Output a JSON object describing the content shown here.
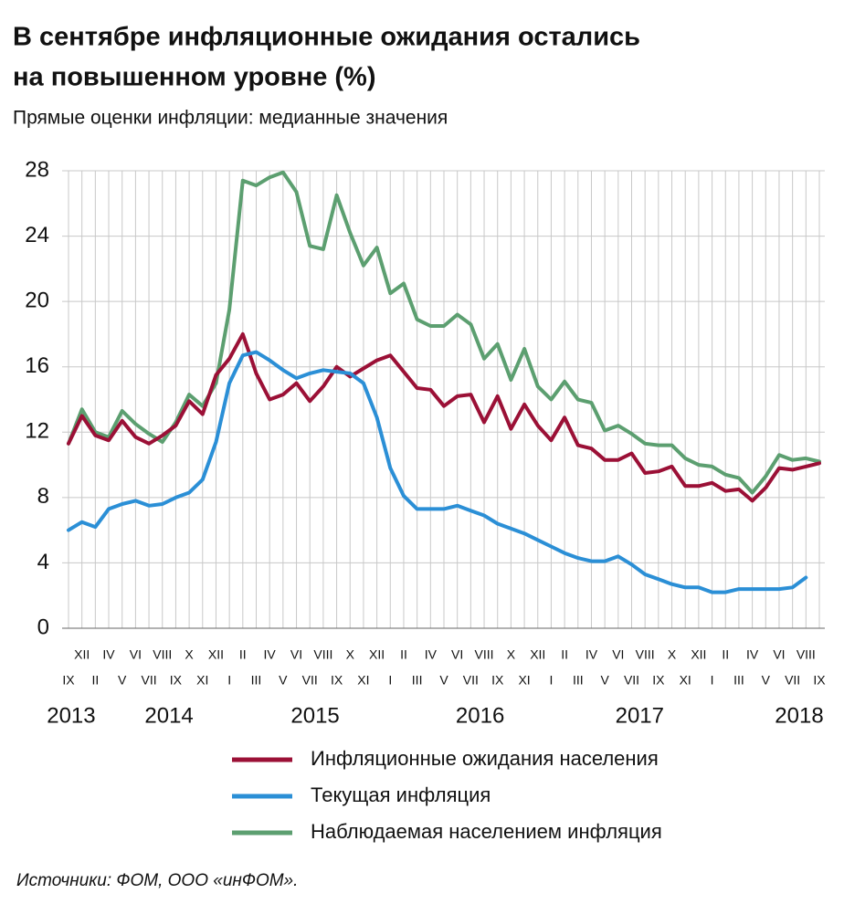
{
  "chart_data": {
    "type": "line",
    "title": [
      "В сентябре инфляционные ожидания остались",
      "на повышенном уровне (%)"
    ],
    "subtitle": "Прямые оценки инфляции: медианные значения",
    "source": "Источники: ФОМ, ООО «инФОМ».",
    "categories": [
      "IX",
      "XII",
      "II",
      "IV",
      "V",
      "VI",
      "VII",
      "VIII",
      "IX",
      "X",
      "XI",
      "XII",
      "I",
      "II",
      "III",
      "IV",
      "V",
      "VI",
      "VII",
      "VIII",
      "IX",
      "X",
      "XI",
      "XII",
      "I",
      "II",
      "III",
      "IV",
      "V",
      "VI",
      "VII",
      "VIII",
      "IX",
      "X",
      "XI",
      "XII",
      "I",
      "II",
      "III",
      "IV",
      "V",
      "VI",
      "VII",
      "VIII",
      "IX",
      "X",
      "XI",
      "XII",
      "I",
      "II",
      "III",
      "IV",
      "V",
      "VI",
      "VII",
      "VIII",
      "IX"
    ],
    "years": [
      "2013",
      "2014",
      "2015",
      "2016",
      "2017",
      "2018"
    ],
    "ylim": [
      0,
      28
    ],
    "yticks": [
      0,
      4,
      8,
      12,
      16,
      20,
      24,
      28
    ],
    "grid": true,
    "series": [
      {
        "name": "Инфляционные ожидания населения",
        "color": "#9b1036",
        "values": [
          11.3,
          13.0,
          11.8,
          11.5,
          12.7,
          11.7,
          11.3,
          11.8,
          12.4,
          13.9,
          13.1,
          15.5,
          16.5,
          18.0,
          15.6,
          14.0,
          14.3,
          15.0,
          13.9,
          14.8,
          16.0,
          15.4,
          15.9,
          16.4,
          16.7,
          15.7,
          14.7,
          14.6,
          13.6,
          14.2,
          14.3,
          12.6,
          14.2,
          12.2,
          13.7,
          12.4,
          11.5,
          12.9,
          11.2,
          11.0,
          10.3,
          10.3,
          10.7,
          9.5,
          9.6,
          9.9,
          8.7,
          8.7,
          8.9,
          8.4,
          8.5,
          7.8,
          8.6,
          9.8,
          9.7,
          9.9,
          10.1
        ]
      },
      {
        "name": "Текущая инфляция",
        "color": "#2b8fd6",
        "values": [
          6.0,
          6.5,
          6.2,
          7.3,
          7.6,
          7.8,
          7.5,
          7.6,
          8.0,
          8.3,
          9.1,
          11.4,
          15.0,
          16.7,
          16.9,
          16.4,
          15.8,
          15.3,
          15.6,
          15.8,
          15.7,
          15.6,
          15.0,
          12.9,
          9.8,
          8.1,
          7.3,
          7.3,
          7.3,
          7.5,
          7.2,
          6.9,
          6.4,
          6.1,
          5.8,
          5.4,
          5.0,
          4.6,
          4.3,
          4.1,
          4.1,
          4.4,
          3.9,
          3.3,
          3.0,
          2.7,
          2.5,
          2.5,
          2.2,
          2.2,
          2.4,
          2.4,
          2.4,
          2.4,
          2.5,
          3.1,
          null
        ]
      },
      {
        "name": "Наблюдаемая населением инфляция",
        "color": "#5c9f70",
        "values": [
          11.3,
          13.4,
          12.0,
          11.7,
          13.3,
          12.5,
          11.9,
          11.4,
          12.6,
          14.3,
          13.6,
          15.0,
          19.5,
          27.4,
          27.1,
          27.6,
          27.9,
          26.7,
          23.4,
          23.2,
          26.5,
          24.2,
          22.2,
          23.3,
          20.5,
          21.1,
          18.9,
          18.5,
          18.5,
          19.2,
          18.6,
          16.5,
          17.4,
          15.2,
          17.1,
          14.8,
          14.0,
          15.1,
          14.0,
          13.8,
          12.1,
          12.4,
          11.9,
          11.3,
          11.2,
          11.2,
          10.4,
          10.0,
          9.9,
          9.4,
          9.2,
          8.3,
          9.3,
          10.6,
          10.3,
          10.4,
          10.2
        ]
      }
    ]
  }
}
